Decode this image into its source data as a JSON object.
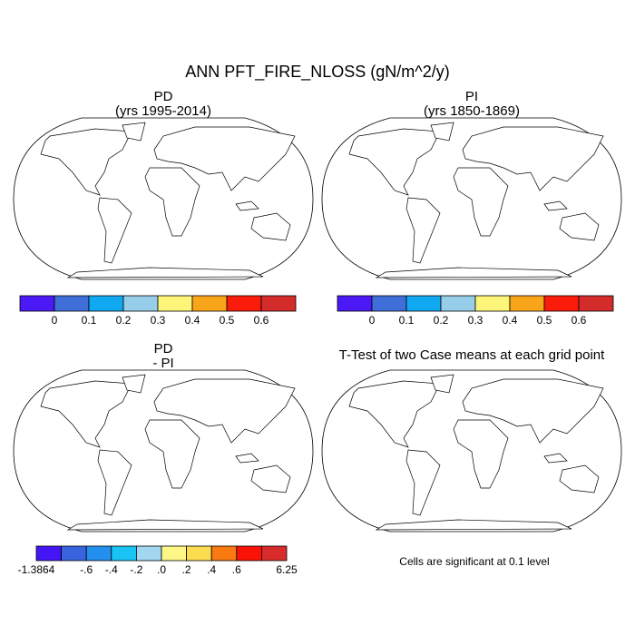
{
  "title": "ANN PFT_FIRE_NLOSS (gN/m^2/y)",
  "panels": [
    {
      "title": "PD",
      "subtitle": "(yrs 1995-2014)"
    },
    {
      "title": "PI",
      "subtitle": "(yrs 1850-1869)"
    },
    {
      "title": "PD",
      "subtitle": "- PI"
    },
    {
      "title": "T-Test of two Case means at each grid point",
      "note": "Cells are significant at 0.1 level"
    }
  ],
  "colorbars": [
    {
      "colors": [
        "#4a19f5",
        "#3f6ed8",
        "#10a8f0",
        "#96cde8",
        "#fdf47a",
        "#f9a51a",
        "#fb1b0b",
        "#d42b2b"
      ],
      "labels": [
        null,
        "0",
        "0.1",
        "0.2",
        "0.3",
        "0.4",
        "0.5",
        "0.6",
        null
      ]
    },
    {
      "colors": [
        "#4a19f5",
        "#3f6ed8",
        "#10a8f0",
        "#96cde8",
        "#fdf47a",
        "#f9a51a",
        "#fb1b0b",
        "#d42b2b"
      ],
      "labels": [
        null,
        "0",
        "0.1",
        "0.2",
        "0.3",
        "0.4",
        "0.5",
        "0.6",
        null
      ]
    },
    {
      "colors": [
        "#4415f5",
        "#3864e0",
        "#2390ee",
        "#19c4f5",
        "#a3d7f0",
        "#fef787",
        "#fbdd4f",
        "#f87a11",
        "#fb1206",
        "#d82c2c"
      ],
      "labels": [
        "-1.3864",
        null,
        "-.6",
        "-.4",
        "-.2",
        ".0",
        ".2",
        ".4",
        ".6",
        null,
        "6.25"
      ]
    }
  ]
}
